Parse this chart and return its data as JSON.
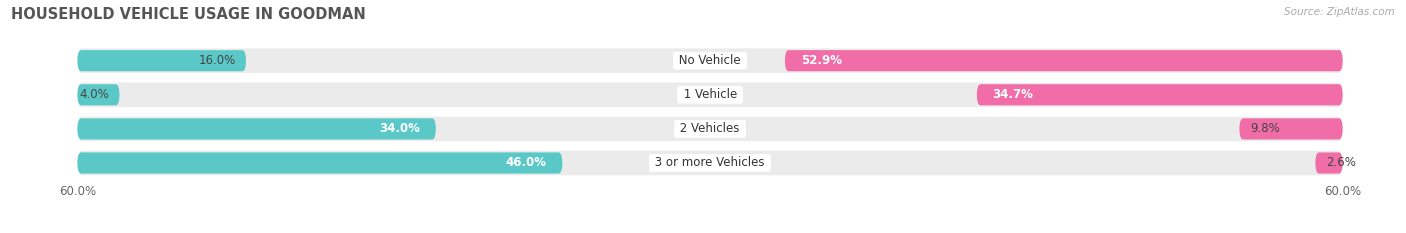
{
  "title": "HOUSEHOLD VEHICLE USAGE IN GOODMAN",
  "source": "Source: ZipAtlas.com",
  "categories": [
    "No Vehicle",
    "1 Vehicle",
    "2 Vehicles",
    "3 or more Vehicles"
  ],
  "owner_values": [
    16.0,
    4.0,
    34.0,
    46.0
  ],
  "renter_values": [
    52.9,
    34.7,
    9.8,
    2.6
  ],
  "owner_color": "#5bc8c8",
  "renter_color": "#f06da8",
  "bar_bg_color": "#ebebeb",
  "xlim": 60.0,
  "title_fontsize": 10.5,
  "label_fontsize": 8.5,
  "value_fontsize": 8.5,
  "tick_fontsize": 8.5,
  "bar_height": 0.62,
  "background_color": "#ffffff",
  "owner_text_inside_threshold": 40.0,
  "renter_text_inside_threshold": 40.0
}
